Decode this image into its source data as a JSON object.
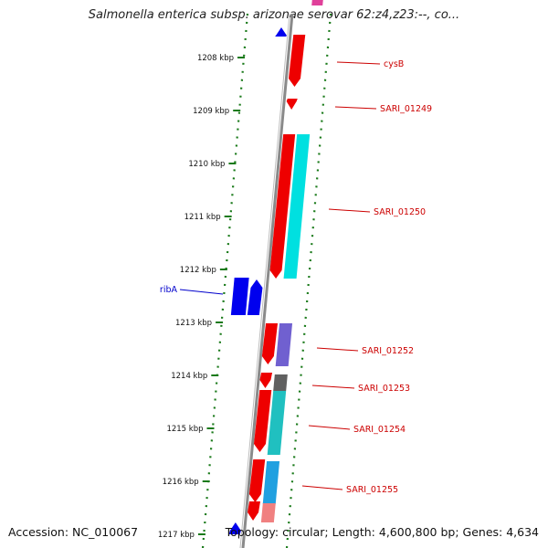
{
  "title": "Salmonella enterica subsp. arizonae serovar 62:z4,z23:--, co...",
  "footer": {
    "accession": "Accession: NC_010067",
    "summary": "Topology: circular; Length: 4,600,800 bp; Genes: 4,634"
  },
  "axis_ticks": [
    "1208 kbp",
    "1209 kbp",
    "1210 kbp",
    "1211 kbp",
    "1212 kbp",
    "1213 kbp",
    "1214 kbp",
    "1215 kbp",
    "1216 kbp",
    "1217 kbp"
  ],
  "gene_labels": [
    {
      "name": "cysB",
      "color": "#cc0000"
    },
    {
      "name": "SARI_01249",
      "color": "#cc0000"
    },
    {
      "name": "SARI_01250",
      "color": "#cc0000"
    },
    {
      "name": "ribA",
      "color": "#0000cc"
    },
    {
      "name": "SARI_01252",
      "color": "#cc0000"
    },
    {
      "name": "SARI_01253",
      "color": "#cc0000"
    },
    {
      "name": "SARI_01254",
      "color": "#cc0000"
    },
    {
      "name": "SARI_01255",
      "color": "#cc0000"
    }
  ],
  "colors": {
    "forward_gene": "#ee0000",
    "reverse_gene": "#0000ee",
    "backbone": "#8a8a8a",
    "gc_dots": "#1a7a1a",
    "tick_marks": "#1a7a1a",
    "cog_cyan": "#00e0e0",
    "cog_teal": "#20c0c0",
    "cog_purple": "#7060d0",
    "cog_gray": "#606060",
    "cog_blue": "#20a0e0",
    "cog_pink": "#f08080"
  }
}
